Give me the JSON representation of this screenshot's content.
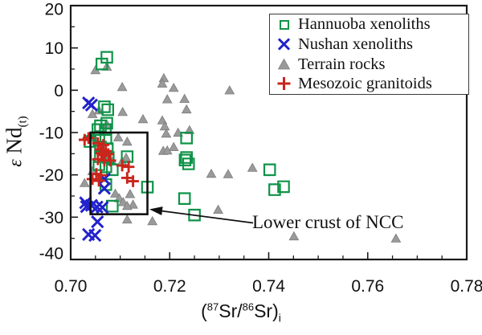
{
  "chart_data": {
    "type": "scatter",
    "title": "",
    "xlabel_plain": "(87Sr/86Sr)i",
    "xlabel_parts": {
      "open": "(",
      "sup1": "87",
      "sr1": "Sr/",
      "sup2": "86",
      "sr2": "Sr)",
      "sub": "i"
    },
    "ylabel_plain": "eNd(t)",
    "ylabel_parts": {
      "epsilon": "ε",
      "main": " Nd",
      "sub": "(t)"
    },
    "xlim": [
      0.7,
      0.78
    ],
    "ylim": [
      -40,
      20
    ],
    "x_major_ticks": [
      {
        "value": 0.7,
        "label": "0.70"
      },
      {
        "value": 0.72,
        "label": "0.72"
      },
      {
        "value": 0.74,
        "label": "0.74"
      },
      {
        "value": 0.76,
        "label": "0.76"
      },
      {
        "value": 0.78,
        "label": "0.78"
      }
    ],
    "x_minor_step": 0.005,
    "y_major_ticks": [
      {
        "value": 20,
        "label": "20"
      },
      {
        "value": 10,
        "label": "10"
      },
      {
        "value": 0,
        "label": "0"
      },
      {
        "value": -10,
        "label": "-10"
      },
      {
        "value": -20,
        "label": "-20"
      },
      {
        "value": -30,
        "label": "-30"
      },
      {
        "value": -40,
        "label": "-40"
      }
    ],
    "y_minor_step": 5,
    "grid": false,
    "legend_position": "top-right",
    "series": [
      {
        "name": "Hannuoba xenoliths",
        "marker": "square",
        "color": "#0f9348",
        "points": [
          [
            0.7073,
            7.8
          ],
          [
            0.7063,
            6.2
          ],
          [
            0.7068,
            -3.9
          ],
          [
            0.7075,
            -4.6
          ],
          [
            0.706,
            -8.4
          ],
          [
            0.7073,
            -7.8
          ],
          [
            0.7055,
            -9.3
          ],
          [
            0.707,
            -9.3
          ],
          [
            0.7039,
            -12.1
          ],
          [
            0.7057,
            -11.8
          ],
          [
            0.7071,
            -11.4
          ],
          [
            0.706,
            -13.4
          ],
          [
            0.7074,
            -13.8
          ],
          [
            0.706,
            -15.7
          ],
          [
            0.7076,
            -15.9
          ],
          [
            0.7057,
            -17.6
          ],
          [
            0.7071,
            -18.1
          ],
          [
            0.7084,
            -18.8
          ],
          [
            0.7114,
            -15.7
          ],
          [
            0.7071,
            -22.3
          ],
          [
            0.7084,
            -27.4
          ],
          [
            0.7155,
            -22.9
          ],
          [
            0.7234,
            -11.3
          ],
          [
            0.7234,
            -15.9
          ],
          [
            0.7231,
            -16.5
          ],
          [
            0.7238,
            -17.4
          ],
          [
            0.723,
            -25.6
          ],
          [
            0.725,
            -29.5
          ],
          [
            0.7402,
            -18.8
          ],
          [
            0.7412,
            -23.5
          ],
          [
            0.743,
            -22.8
          ]
        ]
      },
      {
        "name": "Nushan xenoliths",
        "marker": "x",
        "color": "#2222cc",
        "points": [
          [
            0.7036,
            -3.0
          ],
          [
            0.7042,
            -3.5
          ],
          [
            0.7068,
            -21.0
          ],
          [
            0.7068,
            -23.2
          ],
          [
            0.703,
            -26.6
          ],
          [
            0.7032,
            -27.5
          ],
          [
            0.7042,
            -27.2
          ],
          [
            0.7053,
            -27.6
          ],
          [
            0.7064,
            -27.7
          ],
          [
            0.7054,
            -31.1
          ],
          [
            0.7036,
            -34.1
          ],
          [
            0.7049,
            -34.3
          ]
        ]
      },
      {
        "name": "Terrain rocks",
        "marker": "triangle",
        "color": "#9a9a9a",
        "points": [
          [
            0.705,
            4.8
          ],
          [
            0.7073,
            5.6
          ],
          [
            0.7104,
            0.8
          ],
          [
            0.7188,
            2.9
          ],
          [
            0.7185,
            1.6
          ],
          [
            0.7208,
            0.6
          ],
          [
            0.7321,
            0.0
          ],
          [
            0.7195,
            -2.1
          ],
          [
            0.723,
            -2.0
          ],
          [
            0.7234,
            -4.5
          ],
          [
            0.7057,
            -4.7
          ],
          [
            0.7044,
            -5.6
          ],
          [
            0.7105,
            -5.1
          ],
          [
            0.7146,
            -6.8
          ],
          [
            0.7073,
            -8.0
          ],
          [
            0.7185,
            -7.1
          ],
          [
            0.719,
            -8.5
          ],
          [
            0.7193,
            -10.2
          ],
          [
            0.7217,
            -10.0
          ],
          [
            0.724,
            -9.4
          ],
          [
            0.7047,
            -11.1
          ],
          [
            0.7096,
            -11.1
          ],
          [
            0.7114,
            -12.1
          ],
          [
            0.7208,
            -13.4
          ],
          [
            0.7187,
            -14.3
          ],
          [
            0.7195,
            -14.2
          ],
          [
            0.7112,
            -15.9
          ],
          [
            0.7084,
            -16.8
          ],
          [
            0.7104,
            -16.8
          ],
          [
            0.7044,
            -19.1
          ],
          [
            0.7028,
            -21.9
          ],
          [
            0.7284,
            -19.7
          ],
          [
            0.7318,
            -19.8
          ],
          [
            0.7367,
            -18.3
          ],
          [
            0.709,
            -24.4
          ],
          [
            0.712,
            -24.5
          ],
          [
            0.7098,
            -25.5
          ],
          [
            0.7106,
            -26.4
          ],
          [
            0.7126,
            -27.0
          ],
          [
            0.7114,
            -27.3
          ],
          [
            0.7114,
            -30.5
          ],
          [
            0.7165,
            -30.9
          ],
          [
            0.7298,
            -28.2
          ],
          [
            0.7451,
            -34.5
          ],
          [
            0.7657,
            -35.0
          ]
        ]
      },
      {
        "name": "Mesozoic granitoids",
        "marker": "plus",
        "color": "#c9261c",
        "points": [
          [
            0.7028,
            -11.7
          ],
          [
            0.7036,
            -11.3
          ],
          [
            0.7055,
            -12.5
          ],
          [
            0.7066,
            -12.9
          ],
          [
            0.706,
            -14.0
          ],
          [
            0.7071,
            -14.4
          ],
          [
            0.7062,
            -14.9
          ],
          [
            0.7065,
            -15.3
          ],
          [
            0.7076,
            -15.1
          ],
          [
            0.7055,
            -16.3
          ],
          [
            0.7068,
            -16.6
          ],
          [
            0.708,
            -16.6
          ],
          [
            0.7104,
            -17.8
          ],
          [
            0.7117,
            -18.1
          ],
          [
            0.7052,
            -19.8
          ],
          [
            0.7061,
            -20.1
          ],
          [
            0.7044,
            -21.0
          ],
          [
            0.7057,
            -21.4
          ],
          [
            0.7114,
            -20.7
          ],
          [
            0.7126,
            -21.5
          ]
        ]
      }
    ],
    "annotation": {
      "text": "Lower crust of NCC",
      "box": {
        "x_range": [
          0.704,
          0.7155
        ],
        "y_range": [
          -29.3,
          -10
        ]
      }
    }
  },
  "colors": {
    "frame": "#1a1a1a",
    "background": "#ffffff",
    "box": "#111111",
    "arrow": "#111111"
  }
}
